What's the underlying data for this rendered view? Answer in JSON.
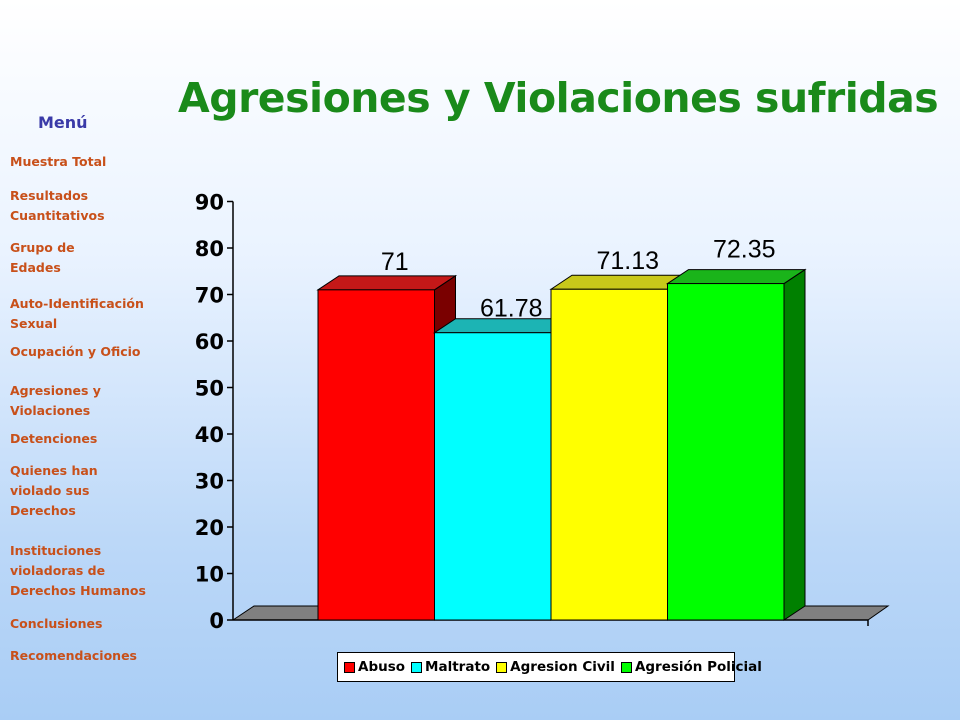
{
  "menu": {
    "heading": "Menú",
    "items": [
      {
        "id": "muestra-total",
        "label": "Muestra Total"
      },
      {
        "id": "resultados-cuantitativos",
        "label": "Resultados\nCuantitativos"
      },
      {
        "id": "grupo-de-edades",
        "label": "Grupo de\nEdades"
      },
      {
        "id": "auto-identificacion-sexual",
        "label": "Auto-Identificación\nSexual"
      },
      {
        "id": "ocupacion-y-oficio",
        "label": "Ocupación y Oficio"
      },
      {
        "id": "agresiones-y-violaciones",
        "label": "Agresiones y\nViolaciones"
      },
      {
        "id": "detenciones",
        "label": "Detenciones"
      },
      {
        "id": "quienes-han-violado",
        "label": "Quienes han\nviolado sus\nDerechos"
      },
      {
        "id": "instituciones-violadoras",
        "label": "Instituciones\nvioladoras de\nDerechos Humanos"
      },
      {
        "id": "conclusiones",
        "label": "Conclusiones"
      },
      {
        "id": "recomendaciones",
        "label": "Recomendaciones"
      }
    ]
  },
  "chart_data": {
    "type": "bar",
    "title": "Agresiones y Violaciones sufridas",
    "categories": [
      ""
    ],
    "series": [
      {
        "name": "Abuso",
        "values": [
          71
        ],
        "label": "71",
        "color": "#ff0000",
        "top_color": "#c41818",
        "side_color": "#7a0000"
      },
      {
        "name": "Maltrato",
        "values": [
          61.78
        ],
        "label": "61.78",
        "color": "#00ffff",
        "top_color": "#1cb4b4",
        "side_color": "#008080"
      },
      {
        "name": "Agresion Civil",
        "values": [
          71.13
        ],
        "label": "71.13",
        "color": "#ffff00",
        "top_color": "#c8c81a",
        "side_color": "#808000"
      },
      {
        "name": "Agresión Policial",
        "values": [
          72.35
        ],
        "label": "72.35",
        "color": "#00ff00",
        "top_color": "#1ab41a",
        "side_color": "#008000"
      }
    ],
    "ylim": [
      0,
      90
    ],
    "yticks": [
      0,
      10,
      20,
      30,
      40,
      50,
      60,
      70,
      80,
      90
    ],
    "legend_position": "bottom",
    "grid": false,
    "floor_color": "#808080"
  }
}
